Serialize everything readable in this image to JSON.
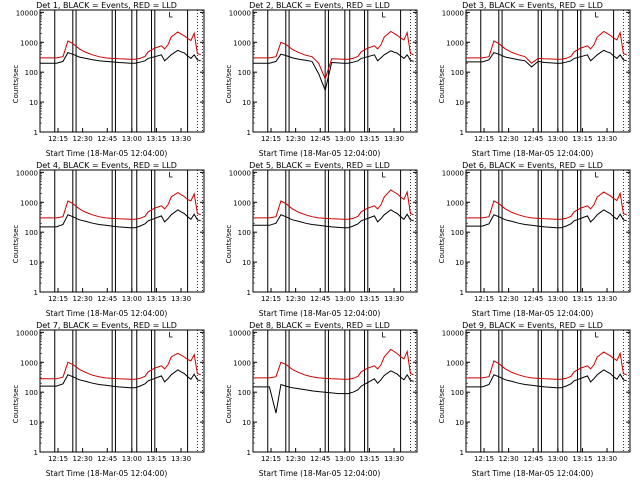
{
  "colors": {
    "events": "#000000",
    "lld": "#cc0000",
    "axis": "#000000"
  },
  "common": {
    "ylabel": "Counts/sec",
    "xlabel": "Start Time (18-Mar-05 12:04:00)",
    "xticks": [
      "12:15",
      "12:30",
      "12:45",
      "13:00",
      "13:15",
      "13:30"
    ],
    "yticks": [
      "1",
      "10",
      "100",
      "1000",
      "10000"
    ]
  },
  "chart_data": [
    {
      "type": "line",
      "title": "Det 1, BLACK = Events, RED = LLD",
      "xlabel": "Start Time (18-Mar-05 12:04:00)",
      "ylabel": "Counts/sec",
      "yscale": "log",
      "ylim": [
        1,
        12000
      ],
      "x_minutes": [
        0,
        10,
        14,
        17,
        20,
        24,
        28,
        32,
        36,
        40,
        44,
        48,
        52,
        55,
        58,
        61,
        64,
        66,
        70,
        74,
        76,
        78,
        80,
        84,
        86,
        88,
        90,
        92,
        94,
        96,
        98
      ],
      "series": [
        {
          "name": "Events",
          "values": [
            200,
            200,
            230,
            450,
            400,
            320,
            290,
            260,
            240,
            230,
            220,
            210,
            205,
            200,
            200,
            215,
            240,
            290,
            330,
            380,
            240,
            300,
            380,
            540,
            480,
            440,
            350,
            290,
            380,
            260,
            240
          ]
        },
        {
          "name": "LLD",
          "values": [
            300,
            300,
            330,
            1100,
            900,
            600,
            460,
            380,
            330,
            300,
            290,
            280,
            275,
            270,
            270,
            290,
            340,
            480,
            640,
            760,
            600,
            820,
            1500,
            2200,
            1900,
            1650,
            1350,
            1150,
            2000,
            420,
            380
          ]
        }
      ],
      "vlines_minutes": [
        9,
        20,
        22,
        44,
        46,
        56,
        59,
        68,
        70,
        90
      ]
    },
    {
      "type": "line",
      "title": "Det 2, BLACK = Events, RED = LLD",
      "xlabel": "Start Time (18-Mar-05 12:04:00)",
      "ylabel": "Counts/sec",
      "yscale": "log",
      "ylim": [
        1,
        12000
      ],
      "x_minutes": [
        0,
        10,
        14,
        17,
        20,
        24,
        28,
        32,
        36,
        40,
        44,
        48,
        52,
        55,
        58,
        61,
        64,
        66,
        70,
        74,
        76,
        78,
        80,
        84,
        86,
        88,
        90,
        92,
        94,
        96,
        98
      ],
      "series": [
        {
          "name": "Events",
          "values": [
            200,
            200,
            230,
            400,
            360,
            300,
            270,
            250,
            230,
            90,
            25,
            210,
            205,
            200,
            200,
            215,
            240,
            290,
            330,
            380,
            240,
            300,
            380,
            520,
            470,
            430,
            350,
            290,
            380,
            250,
            230
          ]
        },
        {
          "name": "LLD",
          "values": [
            300,
            300,
            330,
            1000,
            850,
            580,
            450,
            370,
            330,
            200,
            60,
            280,
            275,
            270,
            270,
            290,
            340,
            480,
            640,
            760,
            600,
            820,
            1500,
            2300,
            2000,
            1700,
            1400,
            1200,
            2100,
            420,
            380
          ]
        }
      ],
      "vlines_minutes": [
        9,
        20,
        22,
        44,
        46,
        56,
        59,
        68,
        70,
        90
      ]
    },
    {
      "type": "line",
      "title": "Det 3, BLACK = Events, RED = LLD",
      "xlabel": "Start Time (18-Mar-05 12:04:00)",
      "ylabel": "Counts/sec",
      "yscale": "log",
      "ylim": [
        1,
        12000
      ],
      "x_minutes": [
        0,
        10,
        14,
        17,
        20,
        24,
        28,
        32,
        36,
        40,
        44,
        48,
        52,
        55,
        58,
        61,
        64,
        66,
        70,
        74,
        76,
        78,
        80,
        84,
        86,
        88,
        90,
        92,
        94,
        96,
        98
      ],
      "series": [
        {
          "name": "Events",
          "values": [
            220,
            220,
            260,
            450,
            400,
            320,
            290,
            260,
            240,
            150,
            230,
            210,
            205,
            200,
            200,
            215,
            240,
            290,
            330,
            380,
            240,
            300,
            380,
            540,
            480,
            440,
            350,
            290,
            380,
            260,
            240
          ]
        },
        {
          "name": "LLD",
          "values": [
            300,
            300,
            330,
            1100,
            900,
            600,
            460,
            380,
            330,
            200,
            290,
            280,
            275,
            270,
            270,
            290,
            340,
            480,
            640,
            760,
            600,
            820,
            1500,
            2300,
            2000,
            1700,
            1400,
            1200,
            2100,
            420,
            380
          ]
        }
      ],
      "vlines_minutes": [
        9,
        20,
        22,
        44,
        46,
        56,
        59,
        68,
        70,
        90
      ]
    },
    {
      "type": "line",
      "title": "Det 4, BLACK = Events, RED = LLD",
      "xlabel": "Start Time (18-Mar-05 12:04:00)",
      "ylabel": "Counts/sec",
      "yscale": "log",
      "ylim": [
        1,
        12000
      ],
      "x_minutes": [
        0,
        10,
        14,
        17,
        20,
        24,
        28,
        32,
        36,
        40,
        44,
        48,
        52,
        55,
        58,
        61,
        64,
        66,
        70,
        74,
        76,
        78,
        80,
        84,
        86,
        88,
        90,
        92,
        94,
        96,
        98
      ],
      "series": [
        {
          "name": "Events",
          "values": [
            150,
            150,
            180,
            380,
            330,
            260,
            230,
            200,
            180,
            170,
            160,
            150,
            145,
            140,
            140,
            160,
            190,
            240,
            290,
            350,
            220,
            280,
            380,
            560,
            480,
            420,
            330,
            270,
            400,
            260,
            240
          ]
        },
        {
          "name": "LLD",
          "values": [
            300,
            300,
            330,
            1100,
            900,
            600,
            460,
            380,
            330,
            300,
            290,
            280,
            275,
            270,
            270,
            290,
            340,
            480,
            640,
            760,
            600,
            820,
            1500,
            2100,
            1800,
            1550,
            1250,
            1100,
            1900,
            420,
            380
          ]
        }
      ],
      "vlines_minutes": [
        9,
        20,
        22,
        44,
        46,
        56,
        59,
        68,
        70,
        90
      ]
    },
    {
      "type": "line",
      "title": "Det 5, BLACK = Events, RED = LLD",
      "xlabel": "Start Time (18-Mar-05 12:04:00)",
      "ylabel": "Counts/sec",
      "yscale": "log",
      "ylim": [
        1,
        12000
      ],
      "x_minutes": [
        0,
        10,
        14,
        17,
        20,
        24,
        28,
        32,
        36,
        40,
        44,
        48,
        52,
        55,
        58,
        61,
        64,
        66,
        70,
        74,
        76,
        78,
        80,
        84,
        86,
        88,
        90,
        92,
        94,
        96,
        98
      ],
      "series": [
        {
          "name": "Events",
          "values": [
            170,
            170,
            200,
            380,
            330,
            260,
            230,
            200,
            180,
            170,
            160,
            150,
            145,
            140,
            140,
            160,
            190,
            240,
            290,
            350,
            220,
            280,
            380,
            560,
            480,
            420,
            330,
            270,
            400,
            260,
            240
          ]
        },
        {
          "name": "LLD",
          "values": [
            300,
            300,
            330,
            1100,
            900,
            600,
            460,
            380,
            330,
            300,
            290,
            280,
            275,
            270,
            270,
            290,
            340,
            480,
            640,
            760,
            600,
            820,
            1500,
            2600,
            2200,
            1900,
            1500,
            1250,
            2200,
            420,
            380
          ]
        }
      ],
      "vlines_minutes": [
        9,
        20,
        22,
        44,
        46,
        56,
        59,
        68,
        70,
        90
      ]
    },
    {
      "type": "line",
      "title": "Det 6, BLACK = Events, RED = LLD",
      "xlabel": "Start Time (18-Mar-05 12:04:00)",
      "ylabel": "Counts/sec",
      "yscale": "log",
      "ylim": [
        1,
        12000
      ],
      "x_minutes": [
        0,
        10,
        14,
        17,
        20,
        24,
        28,
        32,
        36,
        40,
        44,
        48,
        52,
        55,
        58,
        61,
        64,
        66,
        70,
        74,
        76,
        78,
        80,
        84,
        86,
        88,
        90,
        92,
        94,
        96,
        98
      ],
      "series": [
        {
          "name": "Events",
          "values": [
            160,
            160,
            190,
            380,
            330,
            260,
            230,
            200,
            180,
            170,
            160,
            150,
            145,
            140,
            140,
            160,
            190,
            240,
            290,
            350,
            220,
            280,
            380,
            560,
            480,
            420,
            330,
            270,
            400,
            260,
            240
          ]
        },
        {
          "name": "LLD",
          "values": [
            300,
            300,
            330,
            1100,
            900,
            600,
            460,
            380,
            330,
            300,
            290,
            280,
            275,
            270,
            270,
            290,
            340,
            480,
            640,
            760,
            600,
            820,
            1500,
            2200,
            1900,
            1650,
            1350,
            1150,
            2000,
            420,
            380
          ]
        }
      ],
      "vlines_minutes": [
        9,
        20,
        22,
        44,
        46,
        56,
        59,
        68,
        70,
        90
      ]
    },
    {
      "type": "line",
      "title": "Det 7, BLACK = Events, RED = LLD",
      "xlabel": "Start Time (18-Mar-05 12:04:00)",
      "ylabel": "Counts/sec",
      "yscale": "log",
      "ylim": [
        1,
        12000
      ],
      "x_minutes": [
        0,
        10,
        14,
        17,
        20,
        24,
        28,
        32,
        36,
        40,
        44,
        48,
        52,
        55,
        58,
        61,
        64,
        66,
        70,
        74,
        76,
        78,
        80,
        84,
        86,
        88,
        90,
        92,
        94,
        96,
        98
      ],
      "series": [
        {
          "name": "Events",
          "values": [
            160,
            160,
            190,
            380,
            330,
            260,
            230,
            200,
            180,
            170,
            160,
            150,
            145,
            140,
            140,
            160,
            190,
            240,
            290,
            350,
            220,
            280,
            380,
            560,
            480,
            420,
            330,
            270,
            400,
            260,
            240
          ]
        },
        {
          "name": "LLD",
          "values": [
            280,
            280,
            320,
            1000,
            850,
            580,
            450,
            370,
            330,
            300,
            290,
            280,
            275,
            270,
            270,
            290,
            340,
            480,
            640,
            760,
            600,
            820,
            1500,
            2000,
            1750,
            1500,
            1250,
            1100,
            1800,
            420,
            380
          ]
        }
      ],
      "vlines_minutes": [
        9,
        20,
        22,
        44,
        46,
        56,
        59,
        68,
        70,
        90
      ]
    },
    {
      "type": "line",
      "title": "Det 8, BLACK = Events, RED = LLD",
      "xlabel": "Start Time (18-Mar-05 12:04:00)",
      "ylabel": "Counts/sec",
      "yscale": "log",
      "ylim": [
        1,
        12000
      ],
      "x_minutes": [
        0,
        10,
        14,
        17,
        20,
        24,
        28,
        32,
        36,
        40,
        44,
        48,
        52,
        55,
        58,
        61,
        64,
        66,
        70,
        74,
        76,
        78,
        80,
        84,
        86,
        88,
        90,
        92,
        94,
        96,
        98
      ],
      "series": [
        {
          "name": "Events",
          "values": [
            150,
            150,
            20,
            180,
            160,
            140,
            130,
            120,
            110,
            105,
            100,
            95,
            90,
            90,
            90,
            100,
            120,
            160,
            210,
            280,
            200,
            260,
            360,
            520,
            460,
            400,
            320,
            260,
            380,
            250,
            230
          ]
        },
        {
          "name": "LLD",
          "values": [
            300,
            300,
            330,
            1000,
            850,
            580,
            450,
            370,
            330,
            300,
            290,
            280,
            275,
            270,
            270,
            290,
            340,
            480,
            640,
            760,
            600,
            820,
            1500,
            2700,
            2300,
            1950,
            1550,
            1300,
            2300,
            420,
            380
          ]
        }
      ],
      "vlines_minutes": [
        9,
        20,
        22,
        44,
        46,
        56,
        59,
        68,
        70,
        90
      ]
    },
    {
      "type": "line",
      "title": "Det 9, BLACK = Events, RED = LLD",
      "xlabel": "Start Time (18-Mar-05 12:04:00)",
      "ylabel": "Counts/sec",
      "yscale": "log",
      "ylim": [
        1,
        12000
      ],
      "x_minutes": [
        0,
        10,
        14,
        17,
        20,
        24,
        28,
        32,
        36,
        40,
        44,
        48,
        52,
        55,
        58,
        61,
        64,
        66,
        70,
        74,
        76,
        78,
        80,
        84,
        86,
        88,
        90,
        92,
        94,
        96,
        98
      ],
      "series": [
        {
          "name": "Events",
          "values": [
            150,
            150,
            180,
            380,
            330,
            260,
            230,
            200,
            180,
            170,
            160,
            150,
            145,
            140,
            140,
            160,
            190,
            240,
            290,
            350,
            220,
            280,
            380,
            560,
            480,
            420,
            330,
            270,
            400,
            260,
            240
          ]
        },
        {
          "name": "LLD",
          "values": [
            300,
            300,
            330,
            1100,
            900,
            600,
            460,
            380,
            330,
            300,
            290,
            280,
            275,
            270,
            270,
            290,
            340,
            480,
            640,
            760,
            600,
            820,
            1500,
            2200,
            1900,
            1650,
            1350,
            1150,
            2000,
            420,
            380
          ]
        }
      ],
      "vlines_minutes": [
        9,
        20,
        22,
        44,
        46,
        56,
        59,
        68,
        70,
        90
      ]
    }
  ]
}
